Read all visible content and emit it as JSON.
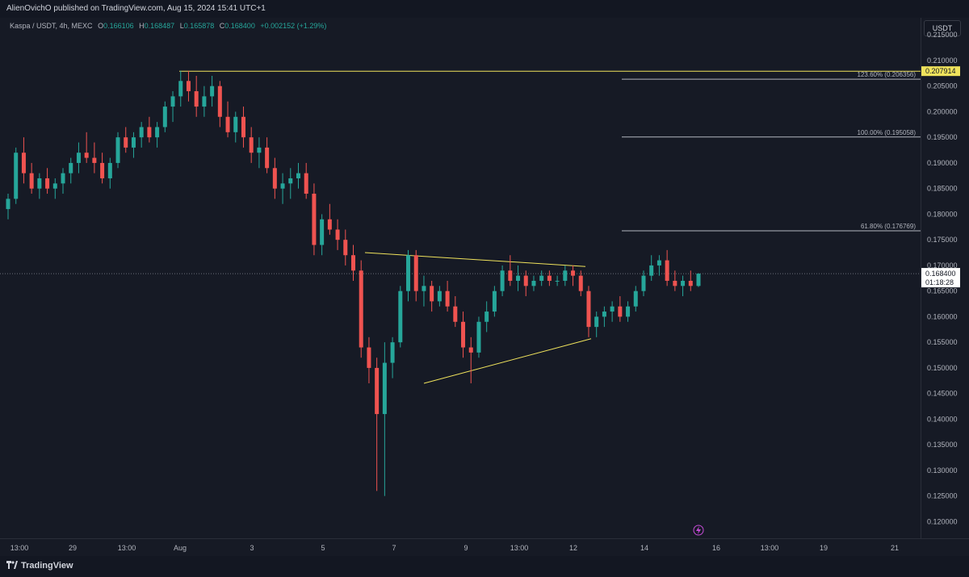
{
  "header": {
    "publisher_text": "AlienOvichO published on TradingView.com, Aug 15, 2024 15:41 UTC+1"
  },
  "legend": {
    "symbol": "Kaspa / USDT, 4h, MEXC",
    "open_label": "O",
    "open": "0.166106",
    "high_label": "H",
    "high": "0.168487",
    "low_label": "L",
    "low": "0.165878",
    "close_label": "C",
    "close": "0.168400",
    "change": "+0.002152 (+1.29%)"
  },
  "currency_button": "USDT",
  "footer": {
    "brand": "TradingView"
  },
  "colors": {
    "up": "#26a69a",
    "down": "#ef5350",
    "trendline": "#f0e35c",
    "fib": "#b2b5be",
    "price_label": "#f0e35c"
  },
  "chart_data": {
    "type": "candlestick",
    "ylim": [
      0.1155,
      0.2155
    ],
    "y_ticks": [
      "0.120000",
      "0.125000",
      "0.130000",
      "0.135000",
      "0.140000",
      "0.145000",
      "0.150000",
      "0.155000",
      "0.160000",
      "0.165000",
      "0.170000",
      "0.175000",
      "0.180000",
      "0.185000",
      "0.190000",
      "0.195000",
      "0.200000",
      "0.205000",
      "0.210000",
      "0.215000"
    ],
    "x_ticks": [
      "13:00",
      "29",
      "13:00",
      "Aug",
      "3",
      "5",
      "7",
      "9",
      "13:00",
      "12",
      "14",
      "16",
      "13:00",
      "19",
      "21"
    ],
    "current_price": {
      "value": 0.1684,
      "label": "0.168400",
      "countdown": "01:18:28"
    },
    "highlight_price": {
      "value": 0.207914,
      "label": "0.207914"
    },
    "fib_levels": [
      {
        "label": "123.60% (0.206356)",
        "value": 0.206356
      },
      {
        "label": "100.00% (0.195058)",
        "value": 0.195058
      },
      {
        "label": "61.80% (0.176769)",
        "value": 0.176769
      }
    ],
    "candles": [
      [
        0.181,
        0.184,
        0.179,
        0.183
      ],
      [
        0.183,
        0.193,
        0.182,
        0.192
      ],
      [
        0.192,
        0.195,
        0.186,
        0.188
      ],
      [
        0.188,
        0.19,
        0.184,
        0.185
      ],
      [
        0.185,
        0.188,
        0.183,
        0.187
      ],
      [
        0.187,
        0.189,
        0.184,
        0.185
      ],
      [
        0.185,
        0.187,
        0.183,
        0.186
      ],
      [
        0.186,
        0.189,
        0.184,
        0.188
      ],
      [
        0.188,
        0.191,
        0.186,
        0.19
      ],
      [
        0.19,
        0.194,
        0.188,
        0.192
      ],
      [
        0.192,
        0.196,
        0.19,
        0.191
      ],
      [
        0.191,
        0.194,
        0.188,
        0.19
      ],
      [
        0.19,
        0.192,
        0.186,
        0.187
      ],
      [
        0.187,
        0.191,
        0.185,
        0.19
      ],
      [
        0.19,
        0.196,
        0.189,
        0.195
      ],
      [
        0.195,
        0.197,
        0.192,
        0.193
      ],
      [
        0.193,
        0.196,
        0.191,
        0.195
      ],
      [
        0.195,
        0.198,
        0.193,
        0.197
      ],
      [
        0.197,
        0.199,
        0.194,
        0.195
      ],
      [
        0.195,
        0.198,
        0.193,
        0.197
      ],
      [
        0.197,
        0.202,
        0.196,
        0.201
      ],
      [
        0.201,
        0.204,
        0.198,
        0.203
      ],
      [
        0.203,
        0.208,
        0.201,
        0.206
      ],
      [
        0.206,
        0.208,
        0.202,
        0.204
      ],
      [
        0.204,
        0.207,
        0.199,
        0.201
      ],
      [
        0.201,
        0.205,
        0.199,
        0.203
      ],
      [
        0.203,
        0.207,
        0.201,
        0.205
      ],
      [
        0.205,
        0.206,
        0.197,
        0.199
      ],
      [
        0.199,
        0.202,
        0.195,
        0.196
      ],
      [
        0.196,
        0.2,
        0.194,
        0.199
      ],
      [
        0.199,
        0.201,
        0.193,
        0.195
      ],
      [
        0.195,
        0.197,
        0.19,
        0.192
      ],
      [
        0.192,
        0.195,
        0.189,
        0.193
      ],
      [
        0.193,
        0.195,
        0.188,
        0.189
      ],
      [
        0.189,
        0.191,
        0.183,
        0.185
      ],
      [
        0.185,
        0.188,
        0.182,
        0.186
      ],
      [
        0.186,
        0.189,
        0.183,
        0.187
      ],
      [
        0.187,
        0.19,
        0.185,
        0.188
      ],
      [
        0.188,
        0.19,
        0.183,
        0.184
      ],
      [
        0.184,
        0.186,
        0.172,
        0.174
      ],
      [
        0.174,
        0.18,
        0.172,
        0.179
      ],
      [
        0.179,
        0.182,
        0.176,
        0.177
      ],
      [
        0.177,
        0.179,
        0.173,
        0.175
      ],
      [
        0.175,
        0.177,
        0.17,
        0.172
      ],
      [
        0.172,
        0.174,
        0.167,
        0.169
      ],
      [
        0.169,
        0.171,
        0.152,
        0.154
      ],
      [
        0.154,
        0.156,
        0.147,
        0.15
      ],
      [
        0.15,
        0.152,
        0.126,
        0.141
      ],
      [
        0.141,
        0.155,
        0.125,
        0.151
      ],
      [
        0.151,
        0.156,
        0.148,
        0.155
      ],
      [
        0.155,
        0.166,
        0.154,
        0.165
      ],
      [
        0.165,
        0.173,
        0.163,
        0.172
      ],
      [
        0.172,
        0.173,
        0.163,
        0.165
      ],
      [
        0.165,
        0.168,
        0.162,
        0.166
      ],
      [
        0.166,
        0.167,
        0.161,
        0.163
      ],
      [
        0.163,
        0.166,
        0.162,
        0.165
      ],
      [
        0.165,
        0.167,
        0.161,
        0.162
      ],
      [
        0.162,
        0.164,
        0.158,
        0.159
      ],
      [
        0.159,
        0.161,
        0.152,
        0.154
      ],
      [
        0.154,
        0.156,
        0.147,
        0.153
      ],
      [
        0.153,
        0.16,
        0.152,
        0.159
      ],
      [
        0.159,
        0.163,
        0.157,
        0.161
      ],
      [
        0.161,
        0.166,
        0.16,
        0.165
      ],
      [
        0.165,
        0.17,
        0.164,
        0.169
      ],
      [
        0.169,
        0.172,
        0.166,
        0.167
      ],
      [
        0.167,
        0.17,
        0.165,
        0.168
      ],
      [
        0.168,
        0.169,
        0.164,
        0.166
      ],
      [
        0.166,
        0.168,
        0.165,
        0.167
      ],
      [
        0.167,
        0.169,
        0.166,
        0.168
      ],
      [
        0.168,
        0.169,
        0.166,
        0.167
      ],
      [
        0.167,
        0.168,
        0.166,
        0.167
      ],
      [
        0.167,
        0.17,
        0.166,
        0.169
      ],
      [
        0.169,
        0.17,
        0.166,
        0.168
      ],
      [
        0.168,
        0.169,
        0.164,
        0.165
      ],
      [
        0.165,
        0.166,
        0.156,
        0.158
      ],
      [
        0.158,
        0.161,
        0.156,
        0.16
      ],
      [
        0.16,
        0.162,
        0.158,
        0.161
      ],
      [
        0.161,
        0.163,
        0.159,
        0.162
      ],
      [
        0.162,
        0.164,
        0.159,
        0.16
      ],
      [
        0.16,
        0.163,
        0.159,
        0.162
      ],
      [
        0.162,
        0.166,
        0.161,
        0.165
      ],
      [
        0.165,
        0.169,
        0.164,
        0.168
      ],
      [
        0.168,
        0.172,
        0.167,
        0.17
      ],
      [
        0.17,
        0.172,
        0.168,
        0.171
      ],
      [
        0.171,
        0.173,
        0.166,
        0.167
      ],
      [
        0.167,
        0.169,
        0.165,
        0.166
      ],
      [
        0.166,
        0.168,
        0.164,
        0.167
      ],
      [
        0.167,
        0.169,
        0.165,
        0.166
      ],
      [
        0.166,
        0.1685,
        0.1658,
        0.1684
      ]
    ],
    "trendlines": [
      {
        "from": [
          0.1725,
          0
        ],
        "to": [
          0.1698,
          1
        ],
        "seg": [
          452,
          725
        ]
      },
      {
        "from": [
          0.147,
          0
        ],
        "to": [
          0.1557,
          1
        ],
        "seg": [
          525,
          732
        ]
      },
      {
        "from": [
          0.2079,
          0
        ],
        "to": [
          0.2079,
          1
        ],
        "seg": [
          222,
          1140
        ]
      }
    ]
  }
}
